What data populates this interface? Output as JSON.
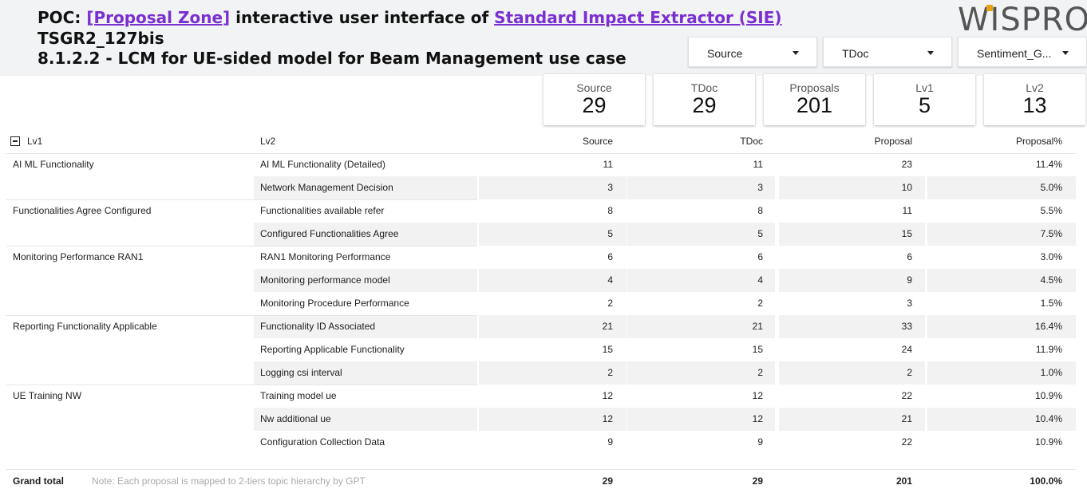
{
  "header": {
    "title_prefix": "POC: ",
    "title_link1": "[Proposal Zone]",
    "title_middle": " interactive user interface of ",
    "title_link2": "Standard Impact Extractor (SIE)",
    "line2": "TSGR2_127bis",
    "line3": "8.1.2.2 - LCM for UE-sided model for Beam Management use case",
    "logo": "WISPRO"
  },
  "filters": [
    {
      "label": "Source"
    },
    {
      "label": "TDoc"
    },
    {
      "label": "Sentiment_G..."
    }
  ],
  "cards": [
    {
      "label": "Source",
      "value": "29"
    },
    {
      "label": "TDoc",
      "value": "29"
    },
    {
      "label": "Proposals",
      "value": "201"
    },
    {
      "label": "Lv1",
      "value": "5"
    },
    {
      "label": "Lv2",
      "value": "13"
    }
  ],
  "table": {
    "headers": {
      "lv1": "Lv1",
      "lv2": "Lv2",
      "source": "Source",
      "tdoc": "TDoc",
      "proposal": "Proposal",
      "pct": "Proposal%"
    },
    "rows": [
      {
        "lv1": "AI ML Functionality",
        "lv2": "AI ML Functionality (Detailed)",
        "source": "11",
        "tdoc": "11",
        "proposal": "23",
        "pct": "11.4%"
      },
      {
        "lv1": "",
        "lv2": "Network Management Decision",
        "source": "3",
        "tdoc": "3",
        "proposal": "10",
        "pct": "5.0%"
      },
      {
        "lv1": "Functionalities Agree Configured",
        "lv2": "Functionalities available refer",
        "source": "8",
        "tdoc": "8",
        "proposal": "11",
        "pct": "5.5%"
      },
      {
        "lv1": "",
        "lv2": "Configured Functionalities Agree",
        "source": "5",
        "tdoc": "5",
        "proposal": "15",
        "pct": "7.5%"
      },
      {
        "lv1": "Monitoring Performance RAN1",
        "lv2": "RAN1 Monitoring Performance",
        "source": "6",
        "tdoc": "6",
        "proposal": "6",
        "pct": "3.0%"
      },
      {
        "lv1": "",
        "lv2": "Monitoring performance model",
        "source": "4",
        "tdoc": "4",
        "proposal": "9",
        "pct": "4.5%"
      },
      {
        "lv1": "",
        "lv2": "Monitoring Procedure Performance",
        "source": "2",
        "tdoc": "2",
        "proposal": "3",
        "pct": "1.5%"
      },
      {
        "lv1": "Reporting Functionality Applicable",
        "lv2": "Functionality ID Associated",
        "source": "21",
        "tdoc": "21",
        "proposal": "33",
        "pct": "16.4%"
      },
      {
        "lv1": "",
        "lv2": "Reporting Applicable Functionality",
        "source": "15",
        "tdoc": "15",
        "proposal": "24",
        "pct": "11.9%"
      },
      {
        "lv1": "",
        "lv2": "Logging csi interval",
        "source": "2",
        "tdoc": "2",
        "proposal": "2",
        "pct": "1.0%"
      },
      {
        "lv1": "UE Training NW",
        "lv2": "Training model ue",
        "source": "12",
        "tdoc": "12",
        "proposal": "22",
        "pct": "10.9%"
      },
      {
        "lv1": "",
        "lv2": "Nw additional ue",
        "source": "12",
        "tdoc": "12",
        "proposal": "21",
        "pct": "10.4%"
      },
      {
        "lv1": "",
        "lv2": "Configuration Collection Data",
        "source": "9",
        "tdoc": "9",
        "proposal": "22",
        "pct": "10.9%"
      }
    ],
    "grand_total": {
      "label": "Grand total",
      "note": "Note: Each proposal is mapped to 2-tiers topic hierarchy by GPT",
      "source": "29",
      "tdoc": "29",
      "proposal": "201",
      "pct": "100.0%"
    }
  }
}
